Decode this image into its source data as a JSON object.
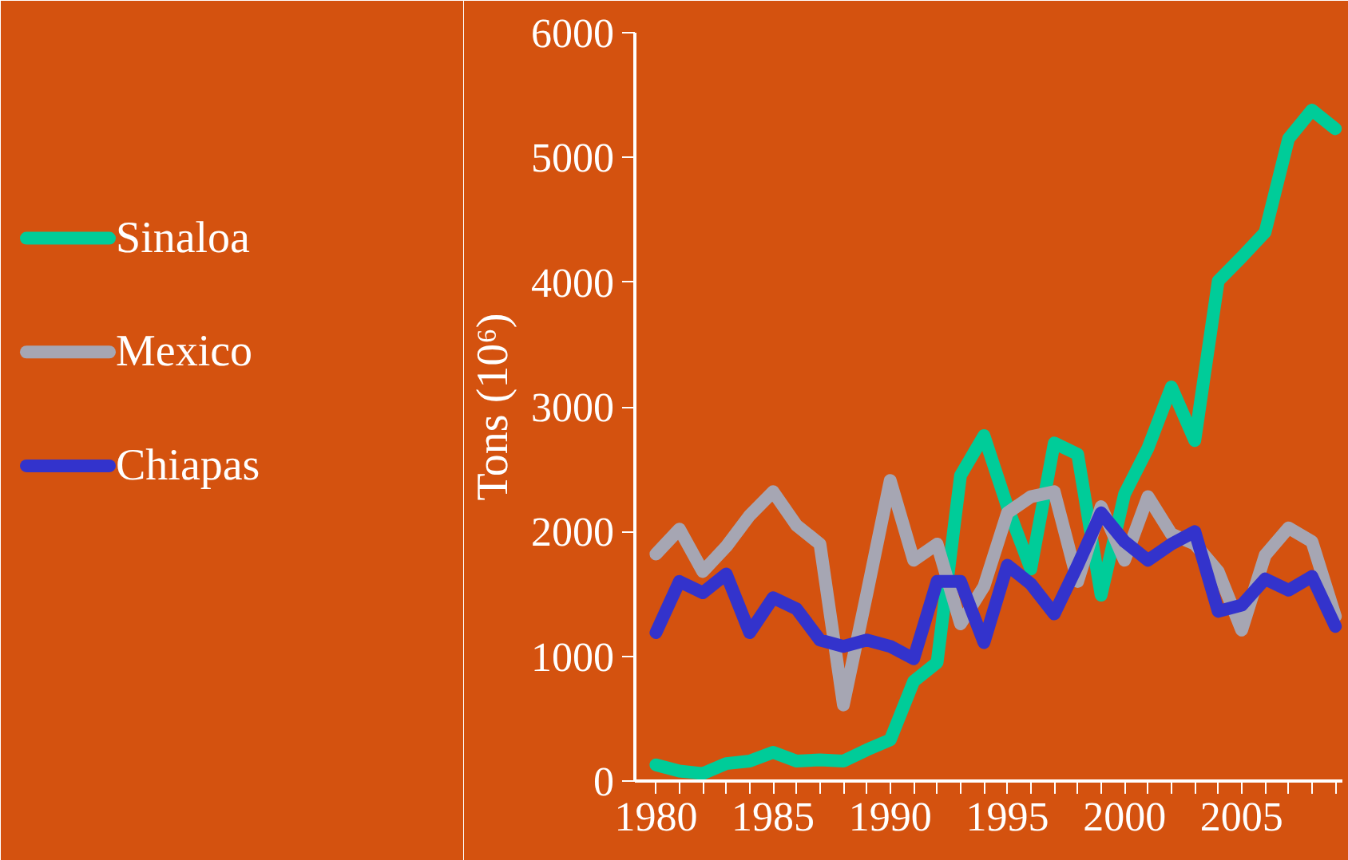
{
  "chart_data": {
    "type": "line",
    "ylabel": "Tons (10⁶)",
    "x": [
      1980,
      1981,
      1982,
      1983,
      1984,
      1985,
      1986,
      1987,
      1988,
      1989,
      1990,
      1991,
      1992,
      1993,
      1994,
      1995,
      1996,
      1997,
      1998,
      1999,
      2000,
      2001,
      2002,
      2003,
      2004,
      2005,
      2006,
      2007,
      2008,
      2009
    ],
    "series": [
      {
        "name": "Sinaloa",
        "color": "#00cc99",
        "values": [
          130,
          80,
          60,
          140,
          160,
          230,
          160,
          170,
          160,
          250,
          330,
          800,
          950,
          2450,
          2770,
          2200,
          1700,
          2710,
          2620,
          1490,
          2300,
          2670,
          3160,
          2730,
          4010,
          4200,
          4400,
          5150,
          5380,
          5230
        ]
      },
      {
        "name": "Mexico",
        "color": "#a6a6b3",
        "values": [
          1820,
          2020,
          1680,
          1880,
          2130,
          2320,
          2050,
          1900,
          610,
          1500,
          2410,
          1770,
          1900,
          1260,
          1560,
          2150,
          2280,
          2320,
          1600,
          2200,
          1770,
          2280,
          1980,
          1900,
          1680,
          1210,
          1810,
          2030,
          1920,
          1320
        ]
      },
      {
        "name": "Chiapas",
        "color": "#3333cc",
        "values": [
          1190,
          1600,
          1510,
          1660,
          1190,
          1470,
          1380,
          1130,
          1080,
          1130,
          1080,
          980,
          1600,
          1600,
          1110,
          1730,
          1580,
          1340,
          1730,
          2150,
          1920,
          1770,
          1900,
          2000,
          1360,
          1410,
          1620,
          1530,
          1640,
          1240
        ]
      }
    ],
    "xlim": [
      1979.1,
      2009.3
    ],
    "xticks": [
      1980,
      1985,
      1990,
      1995,
      2000,
      2005
    ],
    "ylim": [
      0,
      6000
    ],
    "yticks": [
      0,
      1000,
      2000,
      3000,
      4000,
      5000,
      6000
    ],
    "grid": false,
    "legend": "left",
    "marker": "none",
    "line_style": "solid"
  }
}
